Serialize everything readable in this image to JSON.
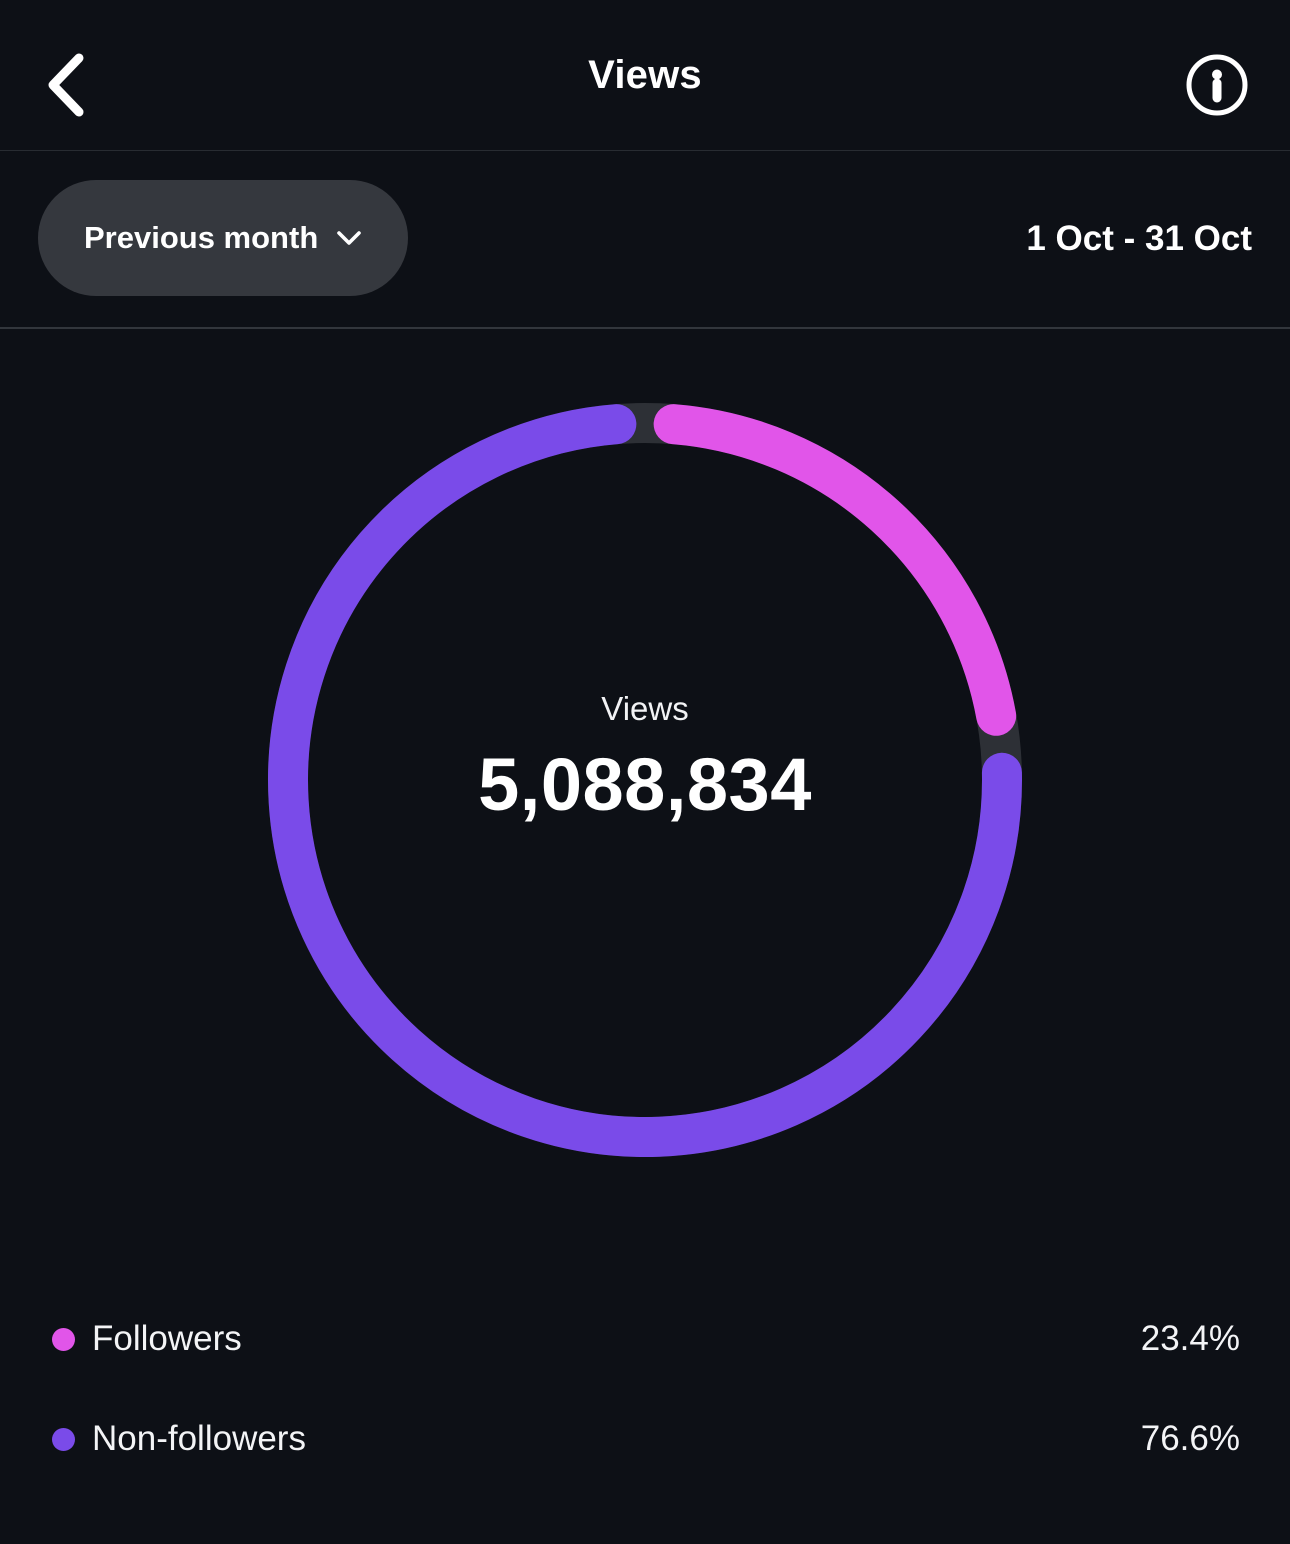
{
  "header": {
    "title": "Views",
    "back_icon": "chevron-left",
    "info_icon": "info-circle"
  },
  "filter": {
    "period_label": "Previous month",
    "period_chevron_icon": "chevron-down",
    "date_range": "1 Oct - 31 Oct"
  },
  "chart_data": {
    "type": "pie",
    "donut": true,
    "title": "Views",
    "center_label": "Views",
    "center_value": "5,088,834",
    "start_angle_deg": 0,
    "direction": "clockwise",
    "gap_degrees": 4.6,
    "track_color": "#2d3036",
    "legend_position": "bottom",
    "series": [
      {
        "name": "Followers",
        "percent": 23.4,
        "display": "23.4%",
        "color": "#e155e9"
      },
      {
        "name": "Non-followers",
        "percent": 76.6,
        "display": "76.6%",
        "color": "#7a4be9"
      }
    ]
  },
  "colors": {
    "background": "#0d1016",
    "pill_background": "#35383e",
    "text_primary": "#ffffff",
    "followers_pink": "#e155e9",
    "non_followers_purple": "#7a4be9"
  }
}
